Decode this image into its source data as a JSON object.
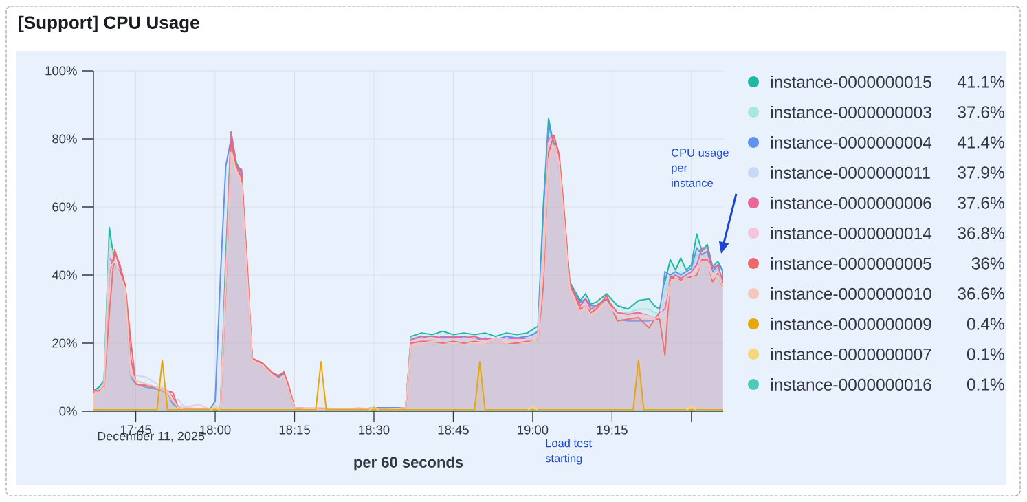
{
  "chart_data": {
    "type": "area",
    "title": "[Support] CPU Usage",
    "xlabel": "per 60 seconds",
    "annotations": [
      "December 11, 2025",
      "Load test starting",
      "CPU usage per instance",
      "41.1%",
      "37.6%",
      "41.4%",
      "37.9%",
      "37.6%",
      "36.8%",
      "36%",
      "36.6%",
      "0.4%",
      "0.1%",
      "0.1%"
    ],
    "x": [
      "2025-12-11T17:37",
      "2025-12-11T17:38",
      "2025-12-11T17:39",
      "2025-12-11T17:40",
      "2025-12-11T17:41",
      "2025-12-11T17:42",
      "2025-12-11T17:43",
      "2025-12-11T17:44",
      "2025-12-11T17:45",
      "2025-12-11T17:47",
      "2025-12-11T17:49",
      "2025-12-11T17:51",
      "2025-12-11T17:52",
      "2025-12-11T17:53",
      "2025-12-11T17:54",
      "2025-12-11T17:57",
      "2025-12-11T17:59",
      "2025-12-11T18:00",
      "2025-12-11T18:01",
      "2025-12-11T18:02",
      "2025-12-11T18:03",
      "2025-12-11T18:04",
      "2025-12-11T18:05",
      "2025-12-11T18:06",
      "2025-12-11T18:07",
      "2025-12-11T18:09",
      "2025-12-11T18:11",
      "2025-12-11T18:12",
      "2025-12-11T18:13",
      "2025-12-11T18:14",
      "2025-12-11T18:15",
      "2025-12-11T18:20",
      "2025-12-11T18:25",
      "2025-12-11T18:27",
      "2025-12-11T18:30",
      "2025-12-11T18:33",
      "2025-12-11T18:36",
      "2025-12-11T18:37",
      "2025-12-11T18:39",
      "2025-12-11T18:41",
      "2025-12-11T18:43",
      "2025-12-11T18:45",
      "2025-12-11T18:47",
      "2025-12-11T18:49",
      "2025-12-11T18:51",
      "2025-12-11T18:53",
      "2025-12-11T18:55",
      "2025-12-11T18:57",
      "2025-12-11T18:59",
      "2025-12-11T19:00",
      "2025-12-11T19:01",
      "2025-12-11T19:02",
      "2025-12-11T19:03",
      "2025-12-11T19:04",
      "2025-12-11T19:05",
      "2025-12-11T19:06",
      "2025-12-11T19:07",
      "2025-12-11T19:09",
      "2025-12-11T19:10",
      "2025-12-11T19:11",
      "2025-12-11T19:12",
      "2025-12-11T19:14",
      "2025-12-11T19:16",
      "2025-12-11T19:18",
      "2025-12-11T19:20",
      "2025-12-11T19:22",
      "2025-12-11T19:23",
      "2025-12-11T19:24",
      "2025-12-11T19:25",
      "2025-12-11T19:26",
      "2025-12-11T19:27",
      "2025-12-11T19:28",
      "2025-12-11T19:29",
      "2025-12-11T19:30",
      "2025-12-11T19:31",
      "2025-12-11T19:32",
      "2025-12-11T19:33",
      "2025-12-11T19:34",
      "2025-12-11T19:35",
      "2025-12-11T19:36"
    ],
    "series": [
      {
        "name": "instance-0000000015",
        "color": "#20b8a3",
        "values": [
          6,
          7,
          9,
          54,
          43,
          41,
          37,
          10,
          8,
          7.5,
          6.5,
          5.5,
          2,
          1,
          0.5,
          0.5,
          0.5,
          0.5,
          1,
          45,
          82,
          73,
          70,
          40,
          15.5,
          14,
          10.5,
          10,
          11,
          5,
          1,
          0.5,
          0.5,
          0.5,
          0.5,
          0.5,
          1,
          22,
          23,
          22.5,
          23.5,
          22.5,
          23,
          22.5,
          23,
          22,
          23,
          22.5,
          23,
          24,
          25,
          60,
          86,
          78,
          72,
          56,
          38,
          32.5,
          34.5,
          31.5,
          32,
          34.5,
          31,
          30,
          32.5,
          33,
          31,
          30,
          38,
          44.5,
          41.5,
          45,
          41.5,
          43,
          52,
          47,
          49,
          42.5,
          44,
          41.1
        ]
      },
      {
        "name": "instance-0000000003",
        "color": "#a8e8dc",
        "values": [
          5,
          6,
          8,
          50,
          44,
          40,
          36,
          10,
          9,
          8,
          7,
          6,
          4,
          1.5,
          0.5,
          0.5,
          0.5,
          0.5,
          1,
          40,
          81,
          72,
          69,
          40,
          15,
          13.5,
          10.5,
          9.5,
          10.5,
          5,
          1,
          0.5,
          0.5,
          0.5,
          0.5,
          0.5,
          1,
          21.5,
          22,
          21.5,
          22,
          21.5,
          22,
          21.5,
          21,
          21.5,
          21,
          21.5,
          22,
          22,
          23,
          52,
          83,
          78,
          72,
          54,
          36,
          31,
          33,
          30,
          30,
          33,
          29,
          29,
          30,
          30,
          29,
          29,
          35,
          40,
          40,
          41,
          40,
          40,
          46,
          46,
          45,
          40,
          42,
          37.6
        ]
      },
      {
        "name": "instance-0000000004",
        "color": "#6192ee",
        "values": [
          5,
          6,
          8,
          45,
          43,
          41,
          37,
          11,
          8,
          7,
          6.5,
          5.5,
          2.5,
          1,
          0.5,
          0.5,
          0.5,
          3,
          40,
          72,
          80,
          72,
          70,
          38,
          15,
          13.5,
          10.5,
          10,
          11,
          5,
          1,
          0.5,
          0.5,
          0.5,
          1,
          1,
          1,
          21,
          22,
          21,
          22,
          21.5,
          22,
          21,
          21.5,
          21,
          22,
          21.5,
          22,
          22.5,
          23.5,
          55,
          84,
          79,
          71,
          54,
          37,
          32,
          33,
          31,
          31,
          33,
          27,
          26.5,
          26.5,
          26.5,
          27,
          28,
          41,
          40,
          41,
          40,
          41,
          42,
          48,
          46,
          47,
          41,
          43,
          41.4
        ]
      },
      {
        "name": "instance-0000000011",
        "color": "#c9d9f5",
        "values": [
          5,
          6,
          7,
          44,
          42,
          38,
          35,
          12,
          10.5,
          10,
          8,
          6,
          3,
          3.5,
          1.5,
          0.5,
          0.5,
          0.5,
          1,
          38,
          79,
          70,
          68,
          36,
          14.5,
          13,
          10,
          9.5,
          10.5,
          5,
          1,
          0.5,
          0.5,
          0.5,
          0.5,
          0.5,
          1,
          21,
          21.5,
          21,
          21.5,
          21,
          21.5,
          21,
          20.5,
          21,
          21,
          21,
          21.5,
          22,
          22.5,
          50,
          80,
          77,
          70,
          53,
          36,
          31,
          32,
          29,
          29,
          31,
          27,
          27,
          27,
          27,
          28,
          28,
          37,
          39,
          40,
          39,
          40,
          40,
          45,
          45,
          44,
          39,
          41,
          37.9
        ]
      },
      {
        "name": "instance-0000000006",
        "color": "#e8689a",
        "values": [
          6,
          6,
          7,
          40,
          47,
          43,
          37,
          16,
          8,
          7.5,
          7,
          6,
          4,
          1,
          0.5,
          0.5,
          0.5,
          0.5,
          1,
          40,
          82,
          72,
          71,
          42,
          15.5,
          14,
          11,
          10.5,
          11.5,
          6,
          1,
          0.5,
          0.5,
          0.5,
          0.5,
          0.5,
          1,
          21,
          22,
          22,
          21.5,
          22,
          21.5,
          22,
          21,
          21.5,
          21,
          21.5,
          21,
          21.5,
          22,
          45,
          80,
          81,
          75,
          57,
          37,
          31,
          33,
          30,
          31,
          33,
          29,
          28.5,
          29,
          28,
          27,
          29,
          30,
          39,
          40,
          39,
          40,
          41,
          43,
          48,
          48,
          42,
          43,
          37.6
        ]
      },
      {
        "name": "instance-0000000014",
        "color": "#f6c5dd",
        "values": [
          6,
          6,
          8,
          46,
          44,
          40,
          36,
          11,
          9,
          8,
          7,
          5.5,
          3,
          1.5,
          1,
          2,
          0.5,
          0.5,
          1,
          38,
          78,
          71,
          68,
          40,
          14.5,
          13.5,
          10.5,
          9.5,
          10.5,
          5.5,
          1,
          1,
          0.5,
          1,
          0.5,
          0.5,
          1,
          20.5,
          21,
          21.5,
          21,
          21,
          21.5,
          21,
          20.5,
          21.5,
          21,
          21,
          21,
          21.5,
          22,
          48,
          79,
          78,
          72,
          55,
          36,
          30,
          32,
          29,
          29.5,
          32,
          28,
          28,
          28.5,
          28,
          27,
          28,
          32,
          38,
          39,
          38,
          39,
          39,
          42,
          45,
          45,
          40,
          41,
          36.8
        ]
      },
      {
        "name": "instance-0000000005",
        "color": "#ee6a6a",
        "values": [
          6,
          6,
          7,
          29,
          47.5,
          42,
          37,
          21.5,
          8,
          7.5,
          7,
          6,
          5.5,
          1,
          0.5,
          0.5,
          0.5,
          0.5,
          1,
          35,
          79,
          72,
          68.5,
          45,
          15.5,
          14,
          11,
          10.5,
          11.5,
          7,
          1,
          0.5,
          0.5,
          0.5,
          0.5,
          0.5,
          1,
          20,
          20.5,
          20.5,
          20,
          20.5,
          20,
          20.5,
          20,
          20.5,
          20,
          20,
          20.5,
          20.5,
          21,
          36.5,
          76,
          81,
          75.5,
          58,
          38,
          30,
          31,
          29,
          30,
          34,
          26.5,
          27,
          27.5,
          24.5,
          27,
          27,
          16.5,
          39.5,
          39,
          38.5,
          39,
          39.5,
          40,
          44.5,
          44.5,
          38,
          40.5,
          36
        ]
      },
      {
        "name": "instance-0000000010",
        "color": "#f5c6bc",
        "values": [
          5,
          5.5,
          7,
          42,
          44,
          40,
          36,
          12,
          9,
          8,
          7,
          6,
          3.5,
          1,
          0.5,
          0.5,
          0.5,
          0.5,
          1,
          37,
          76,
          70,
          67,
          41,
          15,
          13.5,
          10,
          9.5,
          10.5,
          5.5,
          1,
          0.5,
          0.5,
          0.5,
          0.5,
          0.5,
          1,
          19.5,
          20,
          20.5,
          20.5,
          20,
          20.5,
          20,
          20,
          20.5,
          20,
          20.5,
          20,
          20.5,
          21,
          42,
          74,
          78,
          73,
          55,
          36,
          29,
          31,
          28,
          29,
          32,
          28,
          28,
          28,
          27,
          27,
          28,
          25,
          38,
          39,
          38,
          39,
          39,
          41,
          44,
          44,
          39,
          40,
          36.6
        ]
      },
      {
        "name": "instance-0000000009",
        "color": "#e6a60c",
        "x": [
          "2025-12-11T17:37",
          "2025-12-11T17:49",
          "2025-12-11T17:50",
          "2025-12-11T17:51",
          "2025-12-11T18:19",
          "2025-12-11T18:20",
          "2025-12-11T18:21",
          "2025-12-11T18:49",
          "2025-12-11T18:50",
          "2025-12-11T18:51",
          "2025-12-11T19:19",
          "2025-12-11T19:20",
          "2025-12-11T19:21",
          "2025-12-11T19:36"
        ],
        "values": [
          0.4,
          0.4,
          15,
          0.4,
          0.4,
          14.5,
          0.4,
          0.4,
          14.5,
          0.4,
          0.4,
          15,
          0.4,
          0.4
        ]
      },
      {
        "name": "instance-0000000007",
        "color": "#f6d67a",
        "x": [
          "2025-12-11T17:37",
          "2025-12-11T17:59",
          "2025-12-11T18:00",
          "2025-12-11T18:01",
          "2025-12-11T18:29",
          "2025-12-11T18:30",
          "2025-12-11T18:31",
          "2025-12-11T18:59",
          "2025-12-11T19:00",
          "2025-12-11T19:01",
          "2025-12-11T19:29",
          "2025-12-11T19:30",
          "2025-12-11T19:31",
          "2025-12-11T19:36"
        ],
        "values": [
          0.1,
          0.1,
          1.5,
          0.1,
          0.1,
          1.5,
          0.1,
          0.1,
          1.5,
          0.1,
          0.1,
          1.5,
          0.1,
          0.1
        ]
      },
      {
        "name": "instance-0000000016",
        "color": "#4ecab9",
        "x": [
          "2025-12-11T17:37",
          "2025-12-11T19:36"
        ],
        "values": [
          0.1,
          0.1
        ]
      }
    ],
    "xlim": [
      "2025-12-11T17:37",
      "2025-12-11T19:36"
    ],
    "xticks": [
      {
        "value": "2025-12-11T17:45",
        "label": "17:45"
      },
      {
        "value": "2025-12-11T18:00",
        "label": "18:00"
      },
      {
        "value": "2025-12-11T18:15",
        "label": "18:15"
      },
      {
        "value": "2025-12-11T18:30",
        "label": "18:30"
      },
      {
        "value": "2025-12-11T18:45",
        "label": "18:45"
      },
      {
        "value": "2025-12-11T19:00",
        "label": "19:00"
      },
      {
        "value": "2025-12-11T19:15",
        "label": "19:15"
      },
      {
        "value": "2025-12-11T19:30",
        "label": null
      }
    ],
    "ylim": [
      0,
      100
    ],
    "yticks": [
      {
        "value": 0,
        "label": "0%"
      },
      {
        "value": 20,
        "label": "20%"
      },
      {
        "value": 40,
        "label": "40%"
      },
      {
        "value": 60,
        "label": "60%"
      },
      {
        "value": 80,
        "label": "80%"
      },
      {
        "value": 100,
        "label": "100%"
      }
    ],
    "grid": true,
    "legend": "right"
  }
}
